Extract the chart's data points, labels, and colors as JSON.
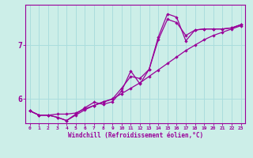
{
  "xlabel": "Windchill (Refroidissement éolien,°C)",
  "bg_color": "#cceee8",
  "grid_color": "#aadddd",
  "line_color": "#990099",
  "xlim": [
    -0.5,
    23.5
  ],
  "ylim": [
    5.55,
    7.75
  ],
  "yticks": [
    6,
    7
  ],
  "xticks": [
    0,
    1,
    2,
    3,
    4,
    5,
    6,
    7,
    8,
    9,
    10,
    11,
    12,
    13,
    14,
    15,
    16,
    17,
    18,
    19,
    20,
    21,
    22,
    23
  ],
  "series": [
    [
      5.78,
      5.7,
      5.7,
      5.72,
      5.72,
      5.74,
      5.82,
      5.88,
      5.94,
      6.0,
      6.1,
      6.2,
      6.3,
      6.42,
      6.54,
      6.66,
      6.78,
      6.9,
      7.0,
      7.1,
      7.18,
      7.24,
      7.3,
      7.36
    ],
    [
      5.78,
      5.7,
      5.7,
      5.66,
      5.6,
      5.7,
      5.8,
      5.88,
      5.95,
      6.0,
      6.2,
      6.42,
      6.38,
      6.55,
      7.1,
      7.48,
      7.42,
      7.18,
      7.28,
      7.3,
      7.3,
      7.3,
      7.32,
      7.38
    ],
    [
      5.78,
      5.7,
      5.7,
      5.66,
      5.6,
      5.72,
      5.84,
      5.94,
      5.9,
      5.95,
      6.15,
      6.52,
      6.28,
      6.55,
      7.15,
      7.58,
      7.52,
      7.08,
      7.28,
      7.3,
      7.3,
      7.3,
      7.32,
      7.38
    ]
  ]
}
